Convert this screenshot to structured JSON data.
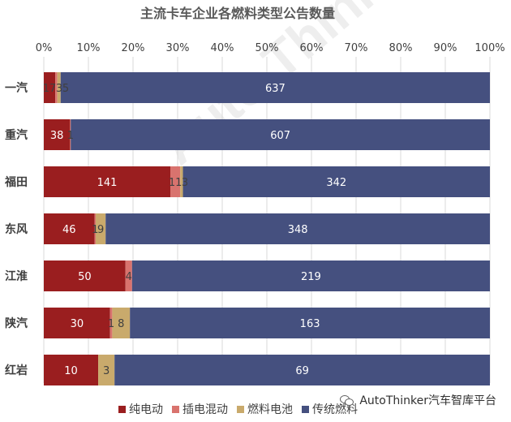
{
  "colors": {
    "bev": "#9a1e1f",
    "phev": "#d9736e",
    "fcev": "#c9aa6c",
    "ice": "#45507f",
    "grid": "#d9d9d9",
    "text": "#404040",
    "title": "#595959"
  },
  "watermark": {
    "logo_text": "Auto Thinker 汽车智库",
    "icon": "autothinker-logo-icon"
  },
  "credit": {
    "icon": "wechat-icon",
    "text": "AutoThinker汽车智库平台"
  },
  "chart_data": {
    "type": "bar",
    "orientation": "horizontal",
    "stacked": "percent",
    "title": "主流卡车企业各燃料类型公告数量",
    "x_axis_position": "top",
    "xlim": [
      0,
      100
    ],
    "x_ticks": [
      "0%",
      "10%",
      "20%",
      "30%",
      "40%",
      "50%",
      "60%",
      "70%",
      "80%",
      "90%",
      "100%"
    ],
    "grid": true,
    "legend_position": "bottom",
    "categories": [
      "一汽",
      "重汽",
      "福田",
      "东风",
      "江淮",
      "陕汽",
      "红岩"
    ],
    "series": [
      {
        "name": "纯电动",
        "color_key": "bev",
        "values": [
          17,
          38,
          141,
          46,
          50,
          30,
          10
        ]
      },
      {
        "name": "插电混动",
        "color_key": "phev",
        "values": [
          3,
          1,
          11,
          1,
          4,
          1,
          0
        ]
      },
      {
        "name": "燃料电池",
        "color_key": "fcev",
        "values": [
          5,
          0,
          3,
          9,
          0,
          8,
          3
        ]
      },
      {
        "name": "传统燃料",
        "color_key": "ice",
        "values": [
          637,
          607,
          342,
          348,
          219,
          163,
          69
        ]
      }
    ]
  }
}
